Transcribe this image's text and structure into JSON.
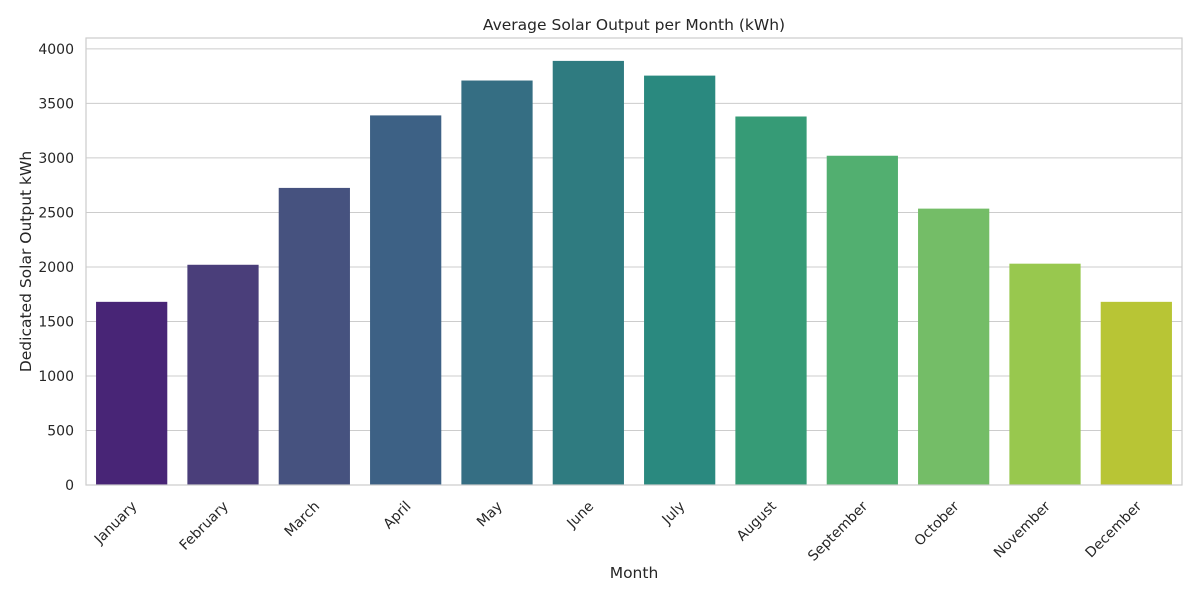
{
  "chart_data": {
    "type": "bar",
    "title": "Average Solar Output per Month (kWh)",
    "xlabel": "Month",
    "ylabel": "Dedicated Solar Output kWh",
    "categories": [
      "January",
      "February",
      "March",
      "April",
      "May",
      "June",
      "July",
      "August",
      "September",
      "October",
      "November",
      "December"
    ],
    "values": [
      1680,
      2020,
      2725,
      3390,
      3710,
      3890,
      3755,
      3380,
      3020,
      2535,
      2030,
      1680
    ],
    "ylim": [
      0,
      4100
    ],
    "yticks": [
      0,
      500,
      1000,
      1500,
      2000,
      2500,
      3000,
      3500,
      4000
    ],
    "grid": "horizontal",
    "colors": [
      "#482576",
      "#4a3e7a",
      "#46527f",
      "#3d6185",
      "#356e83",
      "#2f7b80",
      "#2a897f",
      "#369b76",
      "#52af70",
      "#74bd67",
      "#98c84e",
      "#b8c535"
    ]
  }
}
